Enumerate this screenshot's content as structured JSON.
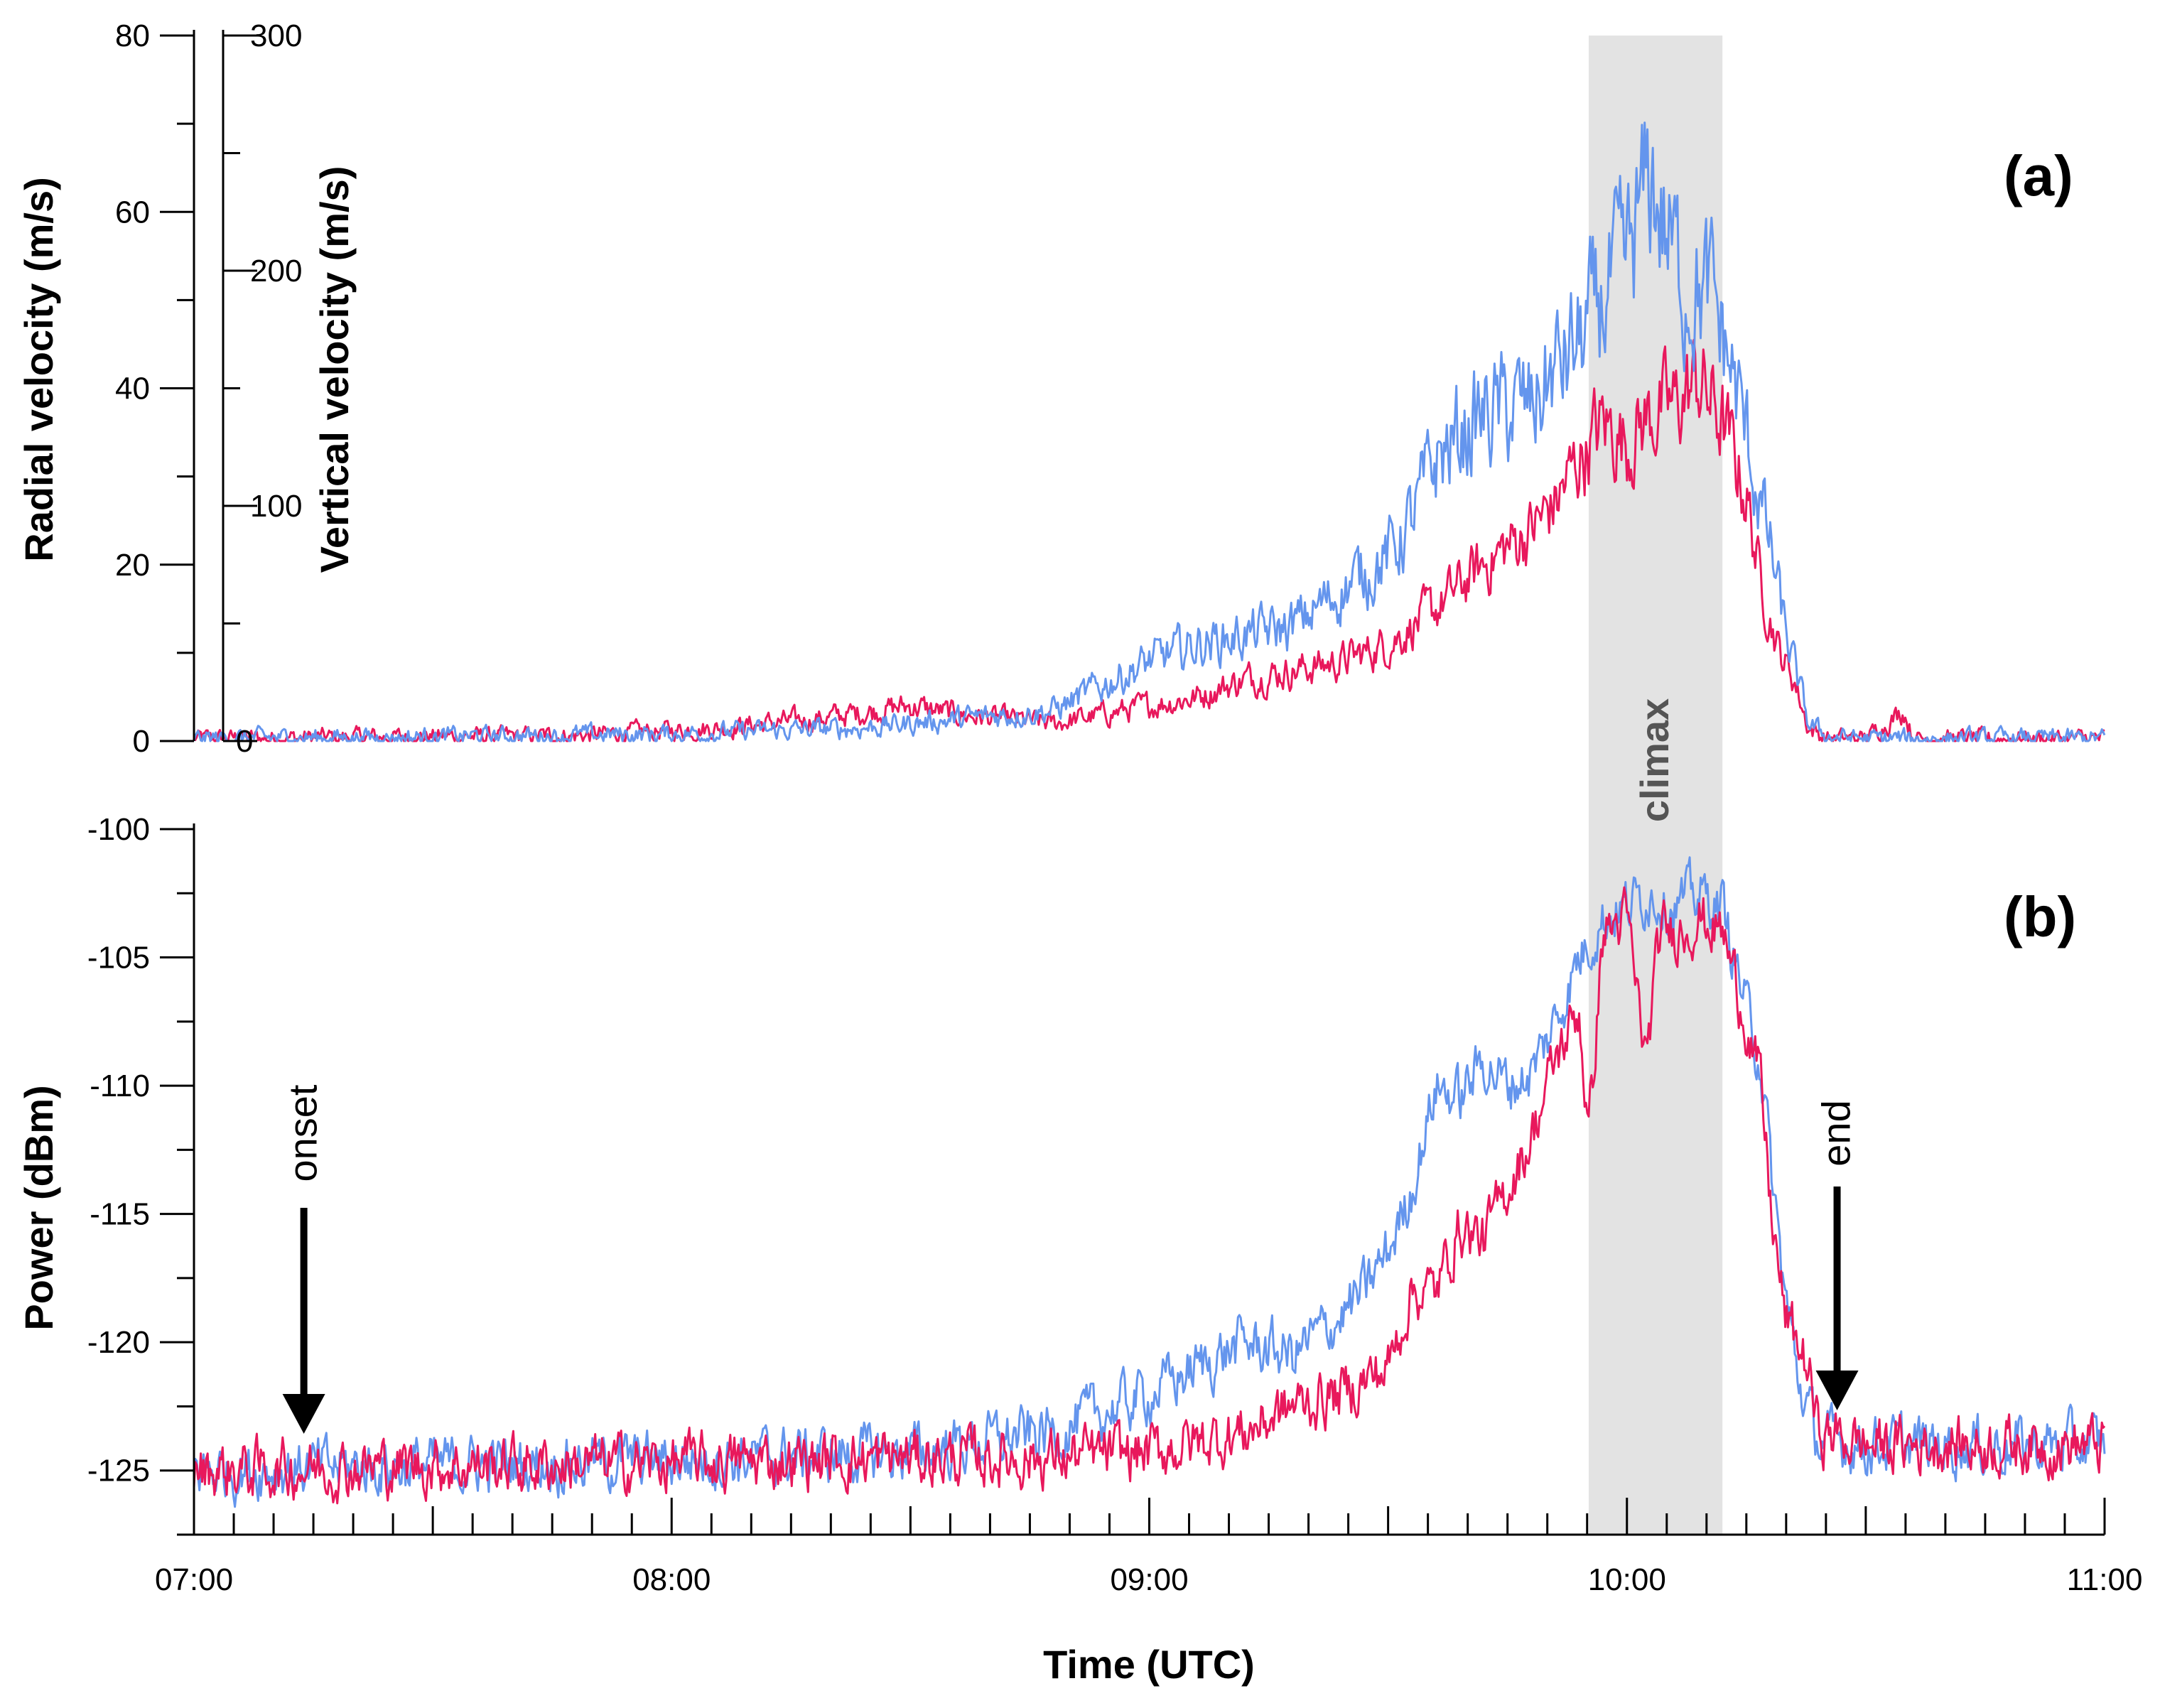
{
  "colors": {
    "series_blue": "#6495ED",
    "series_red": "#E8185C",
    "climax_band": "#E3E3E3",
    "climax_text": "#555555"
  },
  "chart_data": [
    {
      "type": "line",
      "panel": "(a)",
      "ylabel": "Radial velocity (m/s)",
      "ylabel2": "Vertical velocity (m/s)",
      "xlim": [
        7.0,
        11.0
      ],
      "ylim": [
        0,
        80
      ],
      "y2lim": [
        0,
        300
      ],
      "yticks": [
        0,
        20,
        40,
        60,
        80
      ],
      "yticks2": [
        0,
        100,
        200,
        300
      ],
      "legend": "none",
      "series": [
        {
          "name": "blue",
          "x": [
            7.0,
            7.5,
            8.0,
            8.4,
            8.6,
            8.8,
            9.0,
            9.1,
            9.2,
            9.3,
            9.4,
            9.5,
            9.55,
            9.6,
            9.7,
            9.8,
            9.85,
            9.9,
            9.95,
            10.0,
            10.05,
            10.08,
            10.12,
            10.18,
            10.22,
            10.26,
            10.3,
            10.33,
            10.38,
            10.42,
            10.5,
            10.6,
            11.0
          ],
          "values": [
            0.3,
            0.5,
            0.8,
            1.5,
            2.5,
            3.5,
            9,
            11,
            12,
            13,
            17,
            21,
            25,
            32,
            37,
            38,
            42,
            45,
            50,
            54,
            64,
            58,
            52,
            50,
            42,
            32,
            22,
            13,
            2,
            0.5,
            0.3,
            0.3,
            0.3
          ]
        },
        {
          "name": "red",
          "x": [
            7.0,
            7.5,
            7.8,
            8.1,
            8.3,
            8.5,
            8.6,
            8.8,
            9.0,
            9.1,
            9.2,
            9.3,
            9.4,
            9.5,
            9.6,
            9.7,
            9.8,
            9.85,
            9.9,
            9.95,
            10.0,
            10.05,
            10.1,
            10.15,
            10.2,
            10.25,
            10.28,
            10.32,
            10.35,
            10.38,
            10.42,
            10.5,
            10.58,
            10.6,
            11.0
          ],
          "values": [
            0.3,
            0.5,
            0.6,
            1.5,
            2.5,
            4,
            3,
            2,
            4,
            5,
            7,
            8,
            9,
            11,
            15,
            20,
            24,
            27,
            32,
            36,
            34,
            37,
            38,
            41,
            36,
            28,
            18,
            10,
            7,
            1.5,
            0.3,
            0.3,
            3.5,
            0.3,
            0.3
          ]
        }
      ]
    },
    {
      "type": "line",
      "panel": "(b)",
      "xlabel": "Time (UTC)",
      "ylabel": "Power (dBm)",
      "xlim": [
        7.0,
        11.0
      ],
      "ylim": [
        -127.5,
        -100
      ],
      "yticks": [
        -125,
        -120,
        -115,
        -110,
        -105,
        -100
      ],
      "xtick_labels": [
        "07:00",
        "08:00",
        "09:00",
        "10:00",
        "11:00"
      ],
      "legend": "none",
      "series": [
        {
          "name": "blue",
          "x": [
            7.0,
            7.5,
            8.0,
            8.5,
            8.8,
            9.0,
            9.1,
            9.2,
            9.3,
            9.4,
            9.45,
            9.5,
            9.55,
            9.6,
            9.65,
            9.7,
            9.75,
            9.8,
            9.85,
            9.9,
            9.95,
            10.0,
            10.05,
            10.1,
            10.15,
            10.2,
            10.25,
            10.28,
            10.3,
            10.33,
            10.36,
            10.4,
            10.5,
            11.0
          ],
          "values": [
            -125,
            -124.8,
            -124.6,
            -124.3,
            -123.5,
            -122,
            -121,
            -120,
            -120.5,
            -119,
            -118,
            -116.5,
            -114,
            -110,
            -110.5,
            -109,
            -110,
            -109.5,
            -107.5,
            -105,
            -103.5,
            -103,
            -102.5,
            -103,
            -102.5,
            -103,
            -107,
            -109,
            -113,
            -118,
            -121.5,
            -123.8,
            -124,
            -124
          ]
        },
        {
          "name": "red",
          "x": [
            7.0,
            7.5,
            8.0,
            8.5,
            8.8,
            9.0,
            9.2,
            9.3,
            9.4,
            9.5,
            9.55,
            9.6,
            9.65,
            9.7,
            9.75,
            9.8,
            9.85,
            9.9,
            9.92,
            9.95,
            10.0,
            10.04,
            10.07,
            10.1,
            10.15,
            10.2,
            10.25,
            10.28,
            10.3,
            10.33,
            10.38,
            10.4,
            10.5,
            11.0
          ],
          "values": [
            -125,
            -124.8,
            -124.7,
            -124.5,
            -124.5,
            -124.3,
            -123.5,
            -122.5,
            -122,
            -121,
            -118,
            -118,
            -115.5,
            -116,
            -114,
            -112,
            -109,
            -107,
            -112,
            -104,
            -103.5,
            -109,
            -104,
            -104,
            -103.5,
            -104,
            -107.5,
            -110,
            -114.5,
            -119,
            -121,
            -123.5,
            -124,
            -124
          ]
        }
      ]
    }
  ],
  "annotations": {
    "panel_a": "(a)",
    "panel_b": "(b)",
    "climax": "climax",
    "onset": "onset",
    "end": "end",
    "climax_start": 9.92,
    "climax_end": 10.2,
    "onset_time": 7.23,
    "end_time": 10.44
  }
}
